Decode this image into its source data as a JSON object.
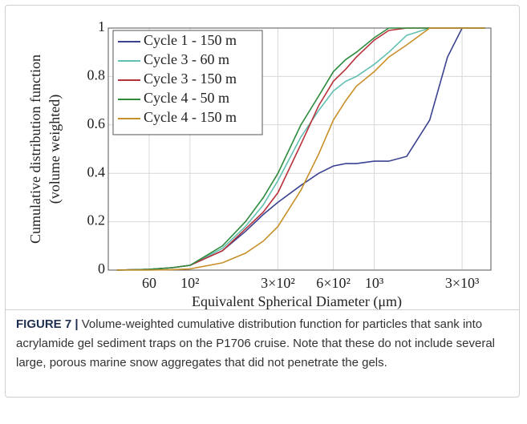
{
  "chart_data": {
    "type": "line",
    "ylabel": [
      "Cumulative distribution function",
      "(volume weighted)"
    ],
    "xlabel": "Equivalent Spherical Diameter (μm)",
    "xscale": "log",
    "grid": true,
    "legend": "upper-left",
    "x": [
      40,
      60,
      80,
      100,
      150,
      200,
      250,
      300,
      400,
      500,
      600,
      700,
      800,
      1000,
      1200,
      1500,
      2000,
      2500,
      3000,
      4000
    ],
    "xlim": [
      36,
      4300
    ],
    "xticks": [
      60,
      {
        "value": 100,
        "label": "10²"
      },
      {
        "value": 300,
        "label": "3×10²"
      },
      {
        "value": 600,
        "label": "6×10²"
      },
      {
        "value": 1000,
        "label": "10³"
      },
      {
        "value": 3000,
        "label": "3×10³"
      }
    ],
    "ylim": [
      0,
      1
    ],
    "yticks": [
      0,
      0.2,
      0.4,
      0.6,
      0.8,
      1
    ],
    "series": [
      {
        "name": "Cycle 1 - 150 m",
        "color": "#3b4290",
        "values": [
          0,
          0.003,
          0.01,
          0.02,
          0.08,
          0.16,
          0.23,
          0.28,
          0.35,
          0.4,
          0.43,
          0.44,
          0.44,
          0.45,
          0.45,
          0.47,
          0.62,
          0.88,
          1,
          1
        ]
      },
      {
        "name": "Cycle 3 - 60 m",
        "color": "#62c0b2",
        "values": [
          0,
          0.003,
          0.01,
          0.02,
          0.09,
          0.18,
          0.27,
          0.37,
          0.55,
          0.66,
          0.74,
          0.78,
          0.8,
          0.85,
          0.9,
          0.97,
          1,
          1,
          1,
          1
        ]
      },
      {
        "name": "Cycle 3 - 150 m",
        "color": "#b8323c",
        "values": [
          0,
          0.003,
          0.01,
          0.02,
          0.08,
          0.17,
          0.24,
          0.32,
          0.52,
          0.68,
          0.78,
          0.83,
          0.88,
          0.95,
          0.99,
          1,
          1,
          1,
          1,
          1
        ]
      },
      {
        "name": "Cycle 4 - 50 m",
        "color": "#2e8b3e",
        "values": [
          0,
          0.003,
          0.01,
          0.02,
          0.1,
          0.2,
          0.3,
          0.4,
          0.6,
          0.72,
          0.82,
          0.87,
          0.9,
          0.96,
          1,
          1,
          1,
          1,
          1,
          1
        ]
      },
      {
        "name": "Cycle 4 - 150 m",
        "color": "#c8902a",
        "values": [
          0,
          0,
          0.002,
          0.005,
          0.03,
          0.07,
          0.12,
          0.18,
          0.33,
          0.48,
          0.62,
          0.7,
          0.76,
          0.82,
          0.88,
          0.93,
          1,
          1,
          1,
          1
        ]
      }
    ]
  },
  "caption": {
    "label": "FIGURE 7 |",
    "text": "Volume-weighted cumulative distribution function for particles that sank into acrylamide gel sediment traps on the P1706 cruise. Note that these do not include several large, porous marine snow aggregates that did not penetrate the gels."
  }
}
